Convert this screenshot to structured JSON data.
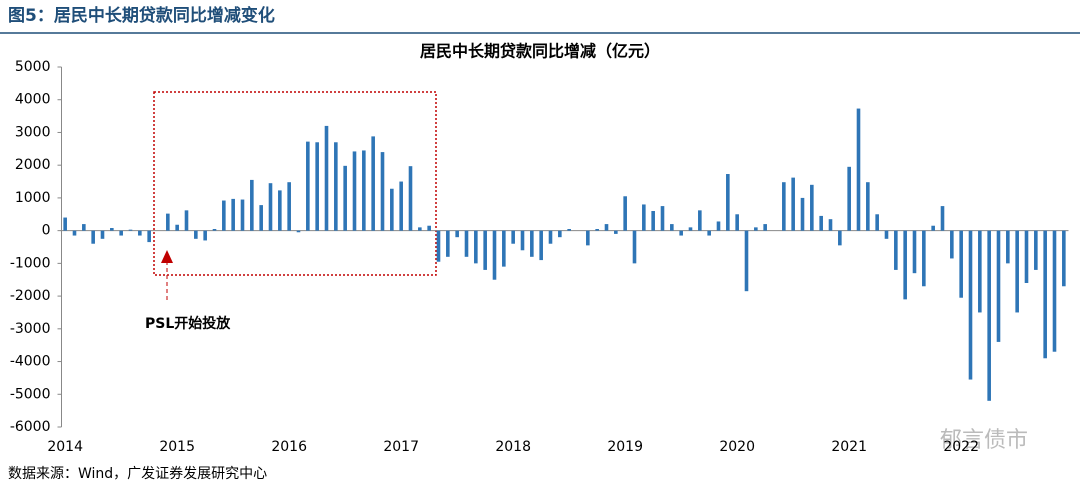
{
  "header": "图5：居民中长期贷款同比增减变化",
  "source": "数据来源：Wind，广发证券发展研究中心",
  "watermark": "郁言债市",
  "chart_data": {
    "type": "bar",
    "title": "居民中长期贷款同比增减（亿元）",
    "categories": [
      "2014",
      null,
      null,
      null,
      null,
      null,
      null,
      null,
      null,
      null,
      null,
      null,
      "2015",
      null,
      null,
      null,
      null,
      null,
      null,
      null,
      null,
      null,
      null,
      null,
      "2016",
      null,
      null,
      null,
      null,
      null,
      null,
      null,
      null,
      null,
      null,
      null,
      "2017",
      null,
      null,
      null,
      null,
      null,
      null,
      null,
      null,
      null,
      null,
      null,
      "2018",
      null,
      null,
      null,
      null,
      null,
      null,
      null,
      null,
      null,
      null,
      null,
      "2019",
      null,
      null,
      null,
      null,
      null,
      null,
      null,
      null,
      null,
      null,
      null,
      "2020",
      null,
      null,
      null,
      null,
      null,
      null,
      null,
      null,
      null,
      null,
      null,
      "2021",
      null,
      null,
      null,
      null,
      null,
      null,
      null,
      null,
      null,
      null,
      null,
      "2022",
      null,
      null,
      null,
      null,
      null,
      null,
      null,
      null,
      null,
      null,
      null
    ],
    "values": [
      400,
      -150,
      200,
      -400,
      -250,
      80,
      -150,
      30,
      -150,
      -350,
      0,
      520,
      180,
      620,
      -250,
      -300,
      50,
      920,
      970,
      950,
      1550,
      780,
      1450,
      1230,
      1480,
      -50,
      2720,
      2700,
      3200,
      2700,
      1980,
      2420,
      2450,
      2880,
      2400,
      1280,
      1500,
      1970,
      100,
      150,
      -950,
      -800,
      -200,
      -800,
      -1000,
      -1200,
      -1500,
      -1100,
      -400,
      -600,
      -800,
      -900,
      -400,
      -200,
      50,
      0,
      -450,
      50,
      200,
      -100,
      1050,
      -1000,
      800,
      600,
      750,
      200,
      -150,
      100,
      620,
      -150,
      280,
      1730,
      500,
      -1850,
      100,
      200,
      0,
      1480,
      1620,
      1000,
      1400,
      450,
      350,
      -450,
      1950,
      3730,
      1480,
      500,
      -250,
      -1200,
      -2100,
      -1300,
      -1700,
      150,
      750,
      -850,
      -2050,
      -4550,
      -2500,
      -5200,
      -3400,
      -1000,
      -2500,
      -1600,
      -1200,
      -3900,
      -3700,
      -1700
    ],
    "color": "#2e75b6",
    "ylim": [
      -6000,
      5000
    ],
    "yticks": [
      -6000,
      -5000,
      -4000,
      -3000,
      -2000,
      -1000,
      0,
      1000,
      2000,
      3000,
      4000,
      5000
    ],
    "grid": false,
    "annotation": "PSL开始投放"
  }
}
